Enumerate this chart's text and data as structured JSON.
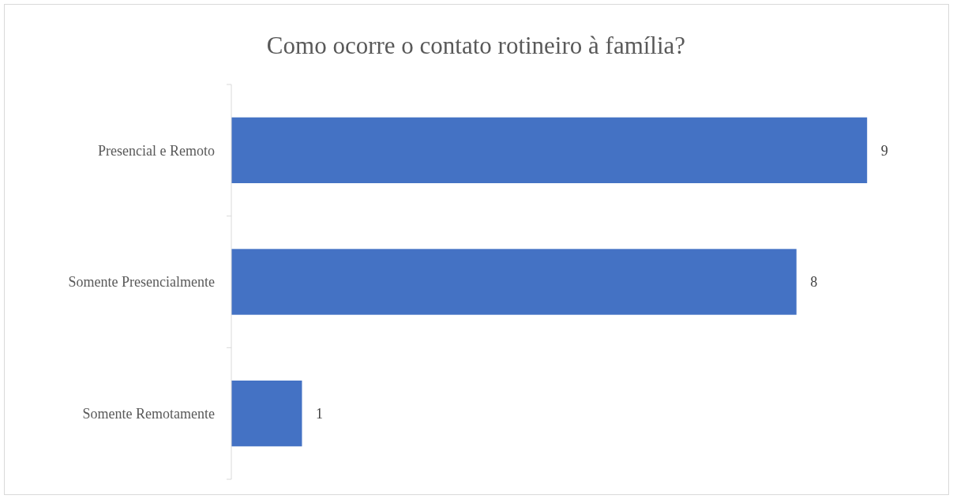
{
  "chart_data": {
    "type": "bar",
    "orientation": "horizontal",
    "title": "Como ocorre o contato rotineiro à família?",
    "categories": [
      "Presencial e Remoto",
      "Somente Presencialmente",
      "Somente Remotamente"
    ],
    "values": [
      9,
      8,
      1
    ],
    "color": "#4472c4",
    "data_labels": true
  }
}
